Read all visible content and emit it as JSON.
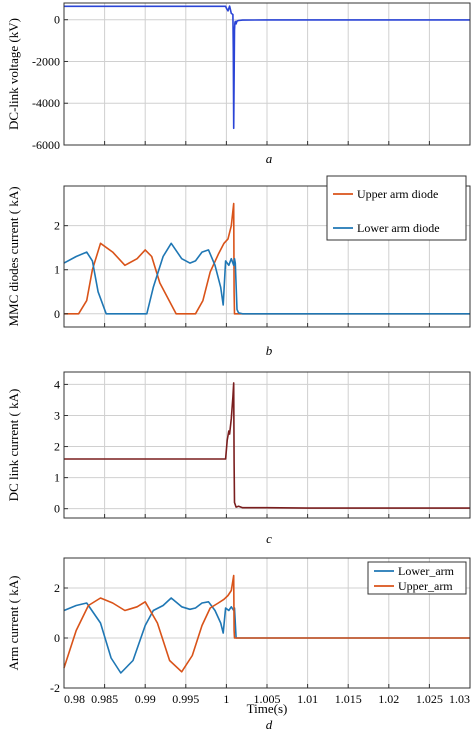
{
  "figure": {
    "colors": {
      "blue": "#2a44d6",
      "orange": "#d95319",
      "lightblue": "#1f77b4",
      "maroon": "#7a1e1e"
    }
  },
  "chart_data": [
    {
      "id": "a",
      "type": "line",
      "caption": "a",
      "title": "",
      "xlabel": "",
      "ylabel": "DC-link voltage (kV)",
      "xlim": [
        0.98,
        1.03
      ],
      "ylim": [
        -6000,
        800
      ],
      "yticks": [
        -6000,
        -4000,
        -2000,
        0
      ],
      "ytick_labels": [
        "-6000",
        "-4000",
        "-2000",
        "0"
      ],
      "xticks": [
        0.98,
        0.985,
        0.99,
        0.995,
        1.0,
        1.005,
        1.01,
        1.015,
        1.02,
        1.025,
        1.03
      ],
      "xtick_labels": [],
      "grid": true,
      "legend": null,
      "series": [
        {
          "color": "#2a44d6",
          "x": [
            0.98,
            0.9999,
            1.0,
            1.0002,
            1.0004,
            1.0006,
            1.0008,
            1.00085,
            1.0009,
            1.001,
            1.00105,
            1.0011,
            1.0012,
            1.0013,
            1.0015,
            1.002,
            1.005,
            1.01,
            1.02,
            1.03
          ],
          "y": [
            640,
            640,
            550,
            420,
            650,
            300,
            250,
            -1500,
            -5200,
            -500,
            -150,
            -80,
            -200,
            -60,
            -40,
            -20,
            -10,
            -10,
            -10,
            -10
          ]
        }
      ]
    },
    {
      "id": "b",
      "type": "line",
      "caption": "b",
      "title": "",
      "xlabel": "",
      "ylabel": "MMC diodes current ( kA)",
      "xlim": [
        0.98,
        1.03
      ],
      "ylim": [
        -0.3,
        2.9
      ],
      "yticks": [
        0,
        1,
        2
      ],
      "ytick_labels": [
        "0",
        "1",
        "2"
      ],
      "xticks": [
        0.98,
        0.985,
        0.99,
        0.995,
        1.0,
        1.005,
        1.01,
        1.015,
        1.02,
        1.025,
        1.03
      ],
      "xtick_labels": [],
      "grid": true,
      "legend": {
        "position": "top-right",
        "layout": "vertical-spaced"
      },
      "series": [
        {
          "name": "Upper arm diode",
          "color": "#d95319",
          "x": [
            0.98,
            0.9818,
            0.9828,
            0.9835,
            0.9845,
            0.986,
            0.9875,
            0.989,
            0.99,
            0.9908,
            0.9918,
            0.9938,
            0.9962,
            0.9971,
            0.998,
            0.999,
            0.9997,
            1.0002,
            1.0006,
            1.0009,
            1.00095,
            1.001,
            1.0015,
            1.005,
            1.01,
            1.03
          ],
          "y": [
            0,
            0,
            0.3,
            1.0,
            1.6,
            1.4,
            1.1,
            1.25,
            1.45,
            1.3,
            0.7,
            0,
            0,
            0.3,
            0.95,
            1.35,
            1.6,
            1.7,
            2.0,
            2.5,
            0.5,
            0,
            0,
            0,
            0,
            0
          ]
        },
        {
          "name": "Lower arm diode",
          "color": "#1f77b4",
          "x": [
            0.98,
            0.9815,
            0.9828,
            0.9835,
            0.9842,
            0.9852,
            0.9865,
            0.988,
            0.9893,
            0.9902,
            0.991,
            0.9922,
            0.9932,
            0.9945,
            0.9955,
            0.9962,
            0.997,
            0.9978,
            0.9986,
            0.9993,
            0.9996,
            0.9999,
            1.0003,
            1.0006,
            1.0009,
            1.001,
            1.0011,
            1.0013,
            1.0015,
            1.002,
            1.005,
            1.01,
            1.03
          ],
          "y": [
            1.15,
            1.3,
            1.4,
            1.2,
            0.5,
            0,
            0,
            0,
            0,
            0,
            0.6,
            1.3,
            1.6,
            1.25,
            1.15,
            1.2,
            1.4,
            1.45,
            1.1,
            0.6,
            0.2,
            1.2,
            1.1,
            1.25,
            1.1,
            1.25,
            1.15,
            0.1,
            0.02,
            0,
            0,
            0,
            0
          ]
        }
      ]
    },
    {
      "id": "c",
      "type": "line",
      "caption": "c",
      "title": "",
      "xlabel": "",
      "ylabel": "DC link current ( kA)",
      "xlim": [
        0.98,
        1.03
      ],
      "ylim": [
        -0.3,
        4.4
      ],
      "yticks": [
        0,
        1,
        2,
        3,
        4
      ],
      "ytick_labels": [
        "0",
        "1",
        "2",
        "3",
        "4"
      ],
      "xticks": [
        0.98,
        0.985,
        0.99,
        0.995,
        1.0,
        1.005,
        1.01,
        1.015,
        1.02,
        1.025,
        1.03
      ],
      "xtick_labels": [],
      "grid": true,
      "legend": null,
      "series": [
        {
          "color": "#7a1e1e",
          "x": [
            0.98,
            0.9999,
            1.0001,
            1.0003,
            1.0004,
            1.0006,
            1.0008,
            1.0009,
            1.00095,
            1.001,
            1.0012,
            1.0015,
            1.002,
            1.005,
            1.01,
            1.03
          ],
          "y": [
            1.6,
            1.6,
            2.2,
            2.5,
            2.4,
            2.9,
            3.6,
            4.05,
            1.5,
            0.2,
            0.05,
            0.08,
            0.03,
            0.03,
            0.02,
            0.02
          ]
        }
      ]
    },
    {
      "id": "d",
      "type": "line",
      "caption": "d",
      "title": "",
      "xlabel": "Time(s)",
      "ylabel": "Arm current ( kA)",
      "xlim": [
        0.98,
        1.03
      ],
      "ylim": [
        -2.0,
        3.2
      ],
      "yticks": [
        -2,
        0,
        2
      ],
      "ytick_labels": [
        "-2",
        "0",
        "2"
      ],
      "xticks": [
        0.98,
        0.985,
        0.99,
        0.995,
        1.0,
        1.005,
        1.01,
        1.015,
        1.02,
        1.025,
        1.03
      ],
      "xtick_labels": [
        "0.98",
        "0.985",
        "0.99",
        "0.995",
        "1",
        "1.005",
        "1.01",
        "1.015",
        "1.02",
        "1.025",
        "1.03"
      ],
      "grid": true,
      "legend": {
        "position": "top-right",
        "layout": "compact"
      },
      "series": [
        {
          "name": "Lower_arm",
          "color": "#1f77b4",
          "x": [
            0.98,
            0.9815,
            0.9828,
            0.9845,
            0.9858,
            0.987,
            0.9885,
            0.99,
            0.991,
            0.9922,
            0.9932,
            0.9945,
            0.9955,
            0.9962,
            0.997,
            0.9978,
            0.9986,
            0.9993,
            0.9996,
            0.9999,
            1.0003,
            1.0006,
            1.0009,
            1.001,
            1.0012,
            1.0015,
            1.005,
            1.01,
            1.03
          ],
          "y": [
            1.1,
            1.3,
            1.4,
            0.6,
            -0.8,
            -1.4,
            -0.9,
            0.5,
            1.1,
            1.3,
            1.6,
            1.25,
            1.15,
            1.2,
            1.4,
            1.45,
            1.1,
            0.6,
            0.2,
            1.2,
            1.1,
            1.25,
            1.1,
            1.2,
            0,
            0,
            0,
            0,
            0
          ]
        },
        {
          "name": "Upper_arm",
          "color": "#d95319",
          "x": [
            0.98,
            0.9815,
            0.983,
            0.9845,
            0.986,
            0.9875,
            0.989,
            0.99,
            0.9915,
            0.993,
            0.9945,
            0.9958,
            0.997,
            0.998,
            0.999,
            0.9997,
            1.0002,
            1.0006,
            1.0009,
            1.00095,
            1.001,
            1.0012,
            1.005,
            1.01,
            1.03
          ],
          "y": [
            -1.2,
            0.3,
            1.3,
            1.6,
            1.4,
            1.1,
            1.25,
            1.45,
            0.6,
            -0.9,
            -1.35,
            -0.7,
            0.5,
            1.2,
            1.4,
            1.55,
            1.7,
            1.9,
            2.5,
            0.3,
            0,
            0,
            0,
            0,
            0
          ]
        }
      ]
    }
  ]
}
